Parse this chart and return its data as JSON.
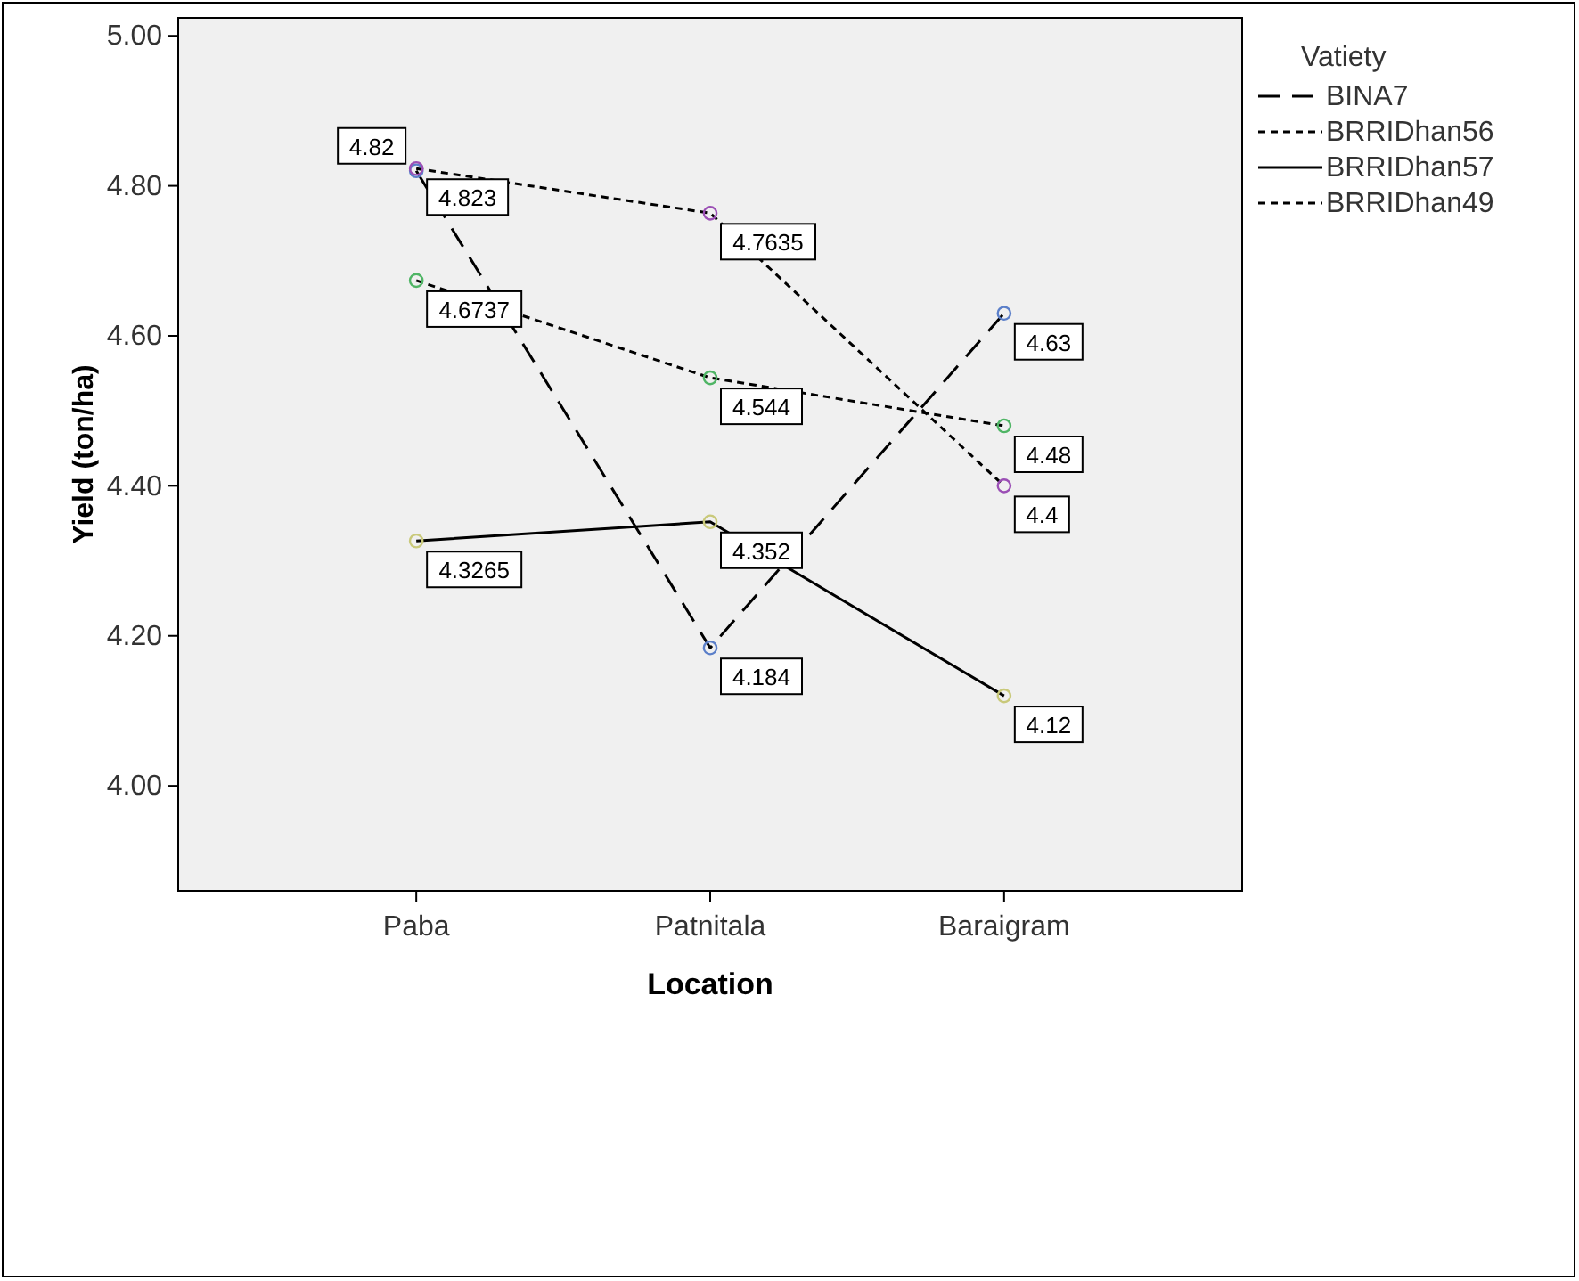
{
  "chart_data": {
    "type": "line",
    "xlabel": "Location",
    "ylabel": "Yield (ton/ha)",
    "legend_title": "Vatiety",
    "legend": "top right",
    "marker": "circle",
    "data_labels": true,
    "categories": [
      "Paba",
      "Patnitala",
      "Baraigram"
    ],
    "ylim": [
      3.86,
      5.024
    ],
    "yticks": [
      {
        "value": 4,
        "label": "4.00"
      },
      {
        "value": 4.2,
        "label": "4.20"
      },
      {
        "value": 4.4,
        "label": "4.40"
      },
      {
        "value": 4.6,
        "label": "4.60"
      },
      {
        "value": 4.8,
        "label": "4.80"
      },
      {
        "value": 5,
        "label": "5.00"
      }
    ],
    "series": [
      {
        "name": "BINA7",
        "color": "#000000",
        "line_style": "dashed",
        "colors": [
          "#5b7fc9",
          "#5b7fc9",
          "#5b7fc9"
        ],
        "values": [
          4.82,
          4.184,
          4.63
        ]
      },
      {
        "name": "BRRIDhan56",
        "color": "#000000",
        "line_style": "dotted",
        "colors": [
          "#4fb565",
          "#4fb565",
          "#4fb565"
        ],
        "values": [
          4.6737,
          4.544,
          4.48
        ]
      },
      {
        "name": "BRRIDhan57",
        "color": "#000000",
        "line_style": "solid",
        "colors": [
          "#c9c97a",
          "#c9c97a",
          "#c9c97a"
        ],
        "values": [
          4.3265,
          4.352,
          4.12
        ]
      },
      {
        "name": "BRRIDhan49",
        "color": "#000000",
        "line_style": "dotted",
        "colors": [
          "#9b4fb5",
          "#9b4fb5",
          "#9b4fb5"
        ],
        "values": [
          4.823,
          4.7635,
          4.4
        ]
      }
    ]
  }
}
